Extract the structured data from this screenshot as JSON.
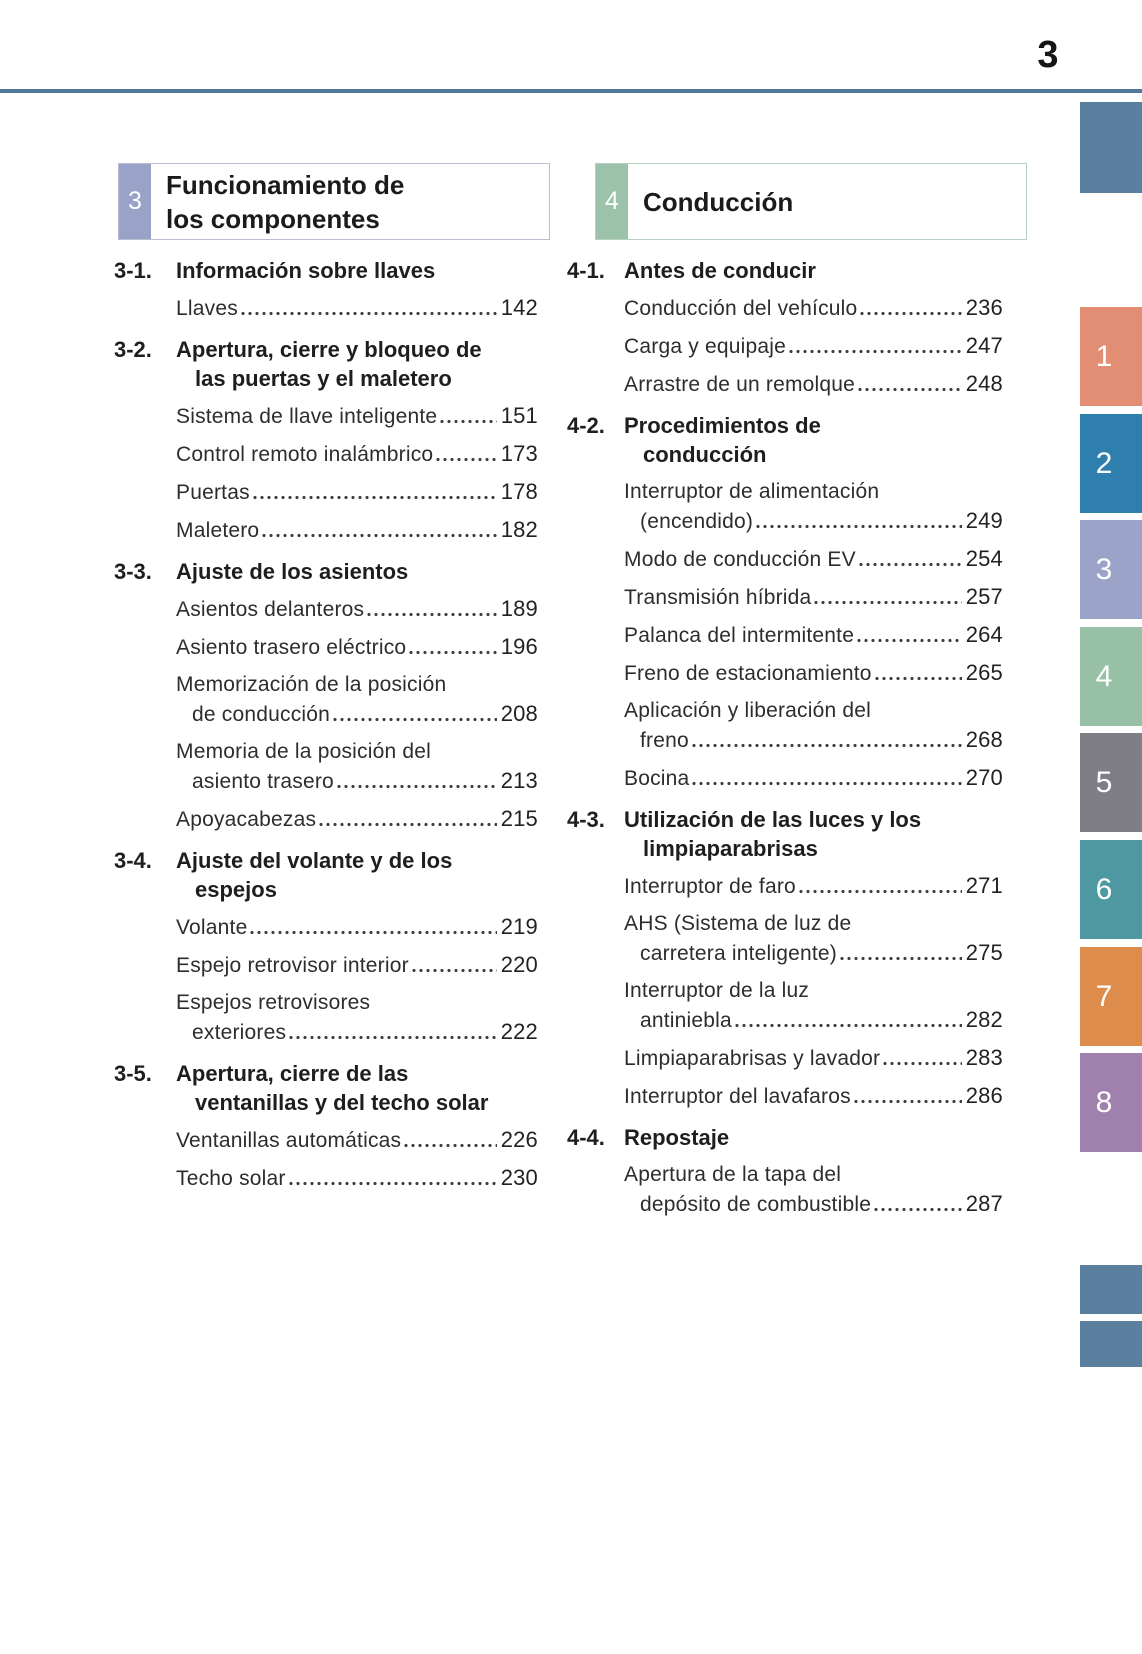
{
  "page_number": "3",
  "colors": {
    "rule": "#53789a",
    "corner_tab": "#5b7f9e",
    "text": "#2d2d2d"
  },
  "columns": [
    {
      "header": {
        "number": "3",
        "title_lines": [
          "Funcionamiento de",
          "los componentes"
        ],
        "badge_color": "#99a2c7",
        "border_color": "#b9bdd3"
      },
      "sections": [
        {
          "num": "3-1.",
          "title_lines": [
            "Información sobre llaves"
          ],
          "entries": [
            {
              "lines": [
                "Llaves"
              ],
              "page": "142"
            }
          ]
        },
        {
          "num": "3-2.",
          "title_lines": [
            "Apertura, cierre y bloqueo de",
            "las puertas y el maletero"
          ],
          "entries": [
            {
              "lines": [
                "Sistema de llave inteligente"
              ],
              "page": "151"
            },
            {
              "lines": [
                "Control remoto inalámbrico"
              ],
              "page": "173"
            },
            {
              "lines": [
                "Puertas"
              ],
              "page": "178"
            },
            {
              "lines": [
                "Maletero"
              ],
              "page": "182"
            }
          ]
        },
        {
          "num": "3-3.",
          "title_lines": [
            "Ajuste de los asientos"
          ],
          "entries": [
            {
              "lines": [
                "Asientos delanteros"
              ],
              "page": "189"
            },
            {
              "lines": [
                "Asiento trasero eléctrico"
              ],
              "page": "196"
            },
            {
              "lines": [
                "Memorización de la posición",
                "de conducción"
              ],
              "page": "208"
            },
            {
              "lines": [
                "Memoria de la posición del",
                "asiento trasero"
              ],
              "page": "213"
            },
            {
              "lines": [
                "Apoyacabezas"
              ],
              "page": "215"
            }
          ]
        },
        {
          "num": "3-4.",
          "title_lines": [
            "Ajuste del volante y de los",
            "espejos"
          ],
          "entries": [
            {
              "lines": [
                "Volante"
              ],
              "page": "219"
            },
            {
              "lines": [
                "Espejo retrovisor interior"
              ],
              "page": "220"
            },
            {
              "lines": [
                "Espejos retrovisores",
                "exteriores"
              ],
              "page": "222"
            }
          ]
        },
        {
          "num": "3-5.",
          "title_lines": [
            "Apertura, cierre de las",
            "ventanillas y del techo solar"
          ],
          "entries": [
            {
              "lines": [
                "Ventanillas automáticas"
              ],
              "page": "226"
            },
            {
              "lines": [
                "Techo solar"
              ],
              "page": "230"
            }
          ]
        }
      ]
    },
    {
      "header": {
        "number": "4",
        "title_lines": [
          "Conducción"
        ],
        "badge_color": "#9cc2ab",
        "border_color": "#b9cfc1"
      },
      "sections": [
        {
          "num": "4-1.",
          "title_lines": [
            "Antes de conducir"
          ],
          "entries": [
            {
              "lines": [
                "Conducción del vehículo"
              ],
              "page": "236"
            },
            {
              "lines": [
                "Carga y equipaje"
              ],
              "page": "247"
            },
            {
              "lines": [
                "Arrastre de un remolque"
              ],
              "page": "248"
            }
          ]
        },
        {
          "num": "4-2.",
          "title_lines": [
            "Procedimientos de",
            "conducción"
          ],
          "entries": [
            {
              "lines": [
                "Interruptor de alimentación",
                "(encendido)"
              ],
              "page": "249"
            },
            {
              "lines": [
                "Modo de conducción EV"
              ],
              "page": "254"
            },
            {
              "lines": [
                "Transmisión híbrida"
              ],
              "page": "257"
            },
            {
              "lines": [
                "Palanca del intermitente"
              ],
              "page": "264"
            },
            {
              "lines": [
                "Freno de estacionamiento"
              ],
              "page": "265"
            },
            {
              "lines": [
                "Aplicación y liberación del",
                "freno"
              ],
              "page": "268"
            },
            {
              "lines": [
                "Bocina"
              ],
              "page": "270"
            }
          ]
        },
        {
          "num": "4-3.",
          "title_lines": [
            "Utilización de las luces y los",
            "limpiaparabrisas"
          ],
          "entries": [
            {
              "lines": [
                "Interruptor de faro"
              ],
              "page": "271"
            },
            {
              "lines": [
                "AHS (Sistema de luz de",
                "carretera inteligente)"
              ],
              "page": "275"
            },
            {
              "lines": [
                "Interruptor de la luz",
                "antiniebla"
              ],
              "page": "282"
            },
            {
              "lines": [
                "Limpiaparabrisas y lavador"
              ],
              "page": "283"
            },
            {
              "lines": [
                "Interruptor del lavafaros"
              ],
              "page": "286"
            }
          ]
        },
        {
          "num": "4-4.",
          "title_lines": [
            "Repostaje"
          ],
          "entries": [
            {
              "lines": [
                "Apertura de la tapa del",
                "depósito de combustible"
              ],
              "page": "287"
            }
          ]
        }
      ]
    }
  ],
  "side_tabs": {
    "numbered": [
      {
        "label": "1",
        "color": "#e28e75"
      },
      {
        "label": "2",
        "color": "#2f7fae"
      },
      {
        "label": "3",
        "color": "#9ba3c9"
      },
      {
        "label": "4",
        "color": "#97c0a6"
      },
      {
        "label": "5",
        "color": "#7f7e86"
      },
      {
        "label": "6",
        "color": "#4e99a1"
      },
      {
        "label": "7",
        "color": "#de8c4c"
      },
      {
        "label": "8",
        "color": "#a081ad"
      }
    ]
  }
}
